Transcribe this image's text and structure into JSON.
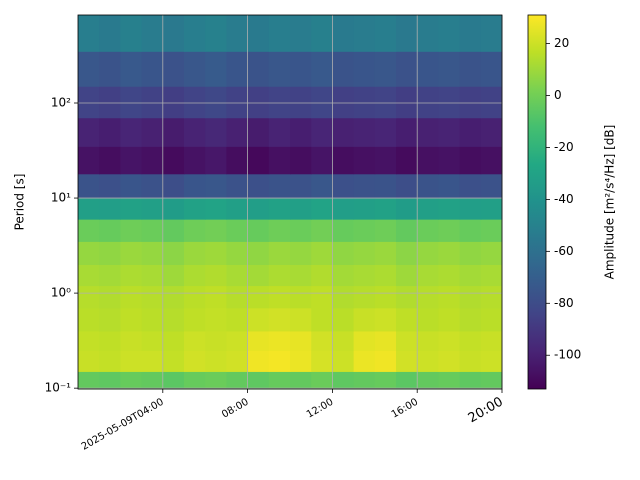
{
  "chart_data": {
    "type": "heatmap",
    "ylabel": "Period [s]",
    "colorbar_label": "Amplitude [m²/s⁴/Hz] [dB]",
    "colormap": "viridis",
    "clim": [
      -113,
      31
    ],
    "cticks": [
      20,
      0,
      -20,
      -40,
      -60,
      -80,
      -100
    ],
    "log_y": true,
    "grid": true,
    "xlim": [
      "2025-05-09T00:00",
      "2025-05-09T20:00"
    ],
    "xticks": [
      {
        "value": "2025-05-09T04:00",
        "label": "2025-05-09T04:00"
      },
      {
        "value": "2025-05-09T08:00",
        "label": "08:00"
      },
      {
        "value": "2025-05-09T12:00",
        "label": "12:00"
      },
      {
        "value": "2025-05-09T16:00",
        "label": "16:00"
      },
      {
        "value": "2025-05-09T20:00",
        "label": "20:00"
      }
    ],
    "ylim": [
      0.098,
      843
    ],
    "yticks": [
      {
        "value": 0.1,
        "label": "10⁻¹"
      },
      {
        "value": 1,
        "label": "10⁰"
      },
      {
        "value": 10,
        "label": "10¹"
      },
      {
        "value": 100,
        "label": "10²"
      }
    ],
    "x_bins": [
      "2025-05-09T00:00",
      "2025-05-09T01:00",
      "2025-05-09T02:00",
      "2025-05-09T03:00",
      "2025-05-09T04:00",
      "2025-05-09T05:00",
      "2025-05-09T06:00",
      "2025-05-09T07:00",
      "2025-05-09T08:00",
      "2025-05-09T09:00",
      "2025-05-09T10:00",
      "2025-05-09T11:00",
      "2025-05-09T12:00",
      "2025-05-09T13:00",
      "2025-05-09T14:00",
      "2025-05-09T15:00",
      "2025-05-09T16:00",
      "2025-05-09T17:00",
      "2025-05-09T18:00",
      "2025-05-09T19:00",
      "2025-05-09T20:00"
    ],
    "y_bins": [
      0.098,
      0.15,
      0.25,
      0.4,
      0.7,
      1.2,
      2,
      3.5,
      6,
      10,
      18,
      35,
      70,
      150,
      350,
      843
    ],
    "values": [
      [
        -4,
        -5,
        -3,
        -4,
        -6,
        -3,
        -2,
        -4,
        -5,
        -3,
        -4,
        -2,
        -5,
        -4,
        -3,
        -6,
        -4,
        -3,
        -5,
        -4
      ],
      [
        19,
        18,
        20,
        20,
        18,
        21,
        20,
        21,
        28,
        29,
        27,
        22,
        20,
        27,
        28,
        21,
        20,
        21,
        19,
        20
      ],
      [
        18,
        17,
        19,
        18,
        17,
        20,
        19,
        20,
        26,
        27,
        26,
        21,
        19,
        25,
        26,
        20,
        19,
        20,
        18,
        19
      ],
      [
        16,
        15,
        17,
        16,
        15,
        17,
        18,
        17,
        20,
        21,
        20,
        17,
        16,
        19,
        20,
        17,
        16,
        17,
        15,
        16
      ],
      [
        15,
        14,
        16,
        15,
        14,
        16,
        17,
        15,
        16,
        17,
        16,
        17,
        14,
        15,
        16,
        14,
        15,
        16,
        14,
        15
      ],
      [
        12,
        11,
        13,
        12,
        10,
        13,
        14,
        12,
        11,
        13,
        12,
        14,
        11,
        12,
        13,
        10,
        12,
        13,
        11,
        12
      ],
      [
        8,
        7,
        9,
        8,
        6,
        9,
        10,
        8,
        7,
        9,
        8,
        10,
        7,
        8,
        9,
        6,
        8,
        9,
        7,
        8
      ],
      [
        -2,
        -3,
        -1,
        -2,
        -4,
        -1,
        0,
        -2,
        -3,
        -1,
        -2,
        0,
        -3,
        -2,
        -1,
        -4,
        -2,
        -1,
        -3,
        -2
      ],
      [
        -32,
        -33,
        -31,
        -32,
        -34,
        -31,
        -30,
        -32,
        -33,
        -31,
        -32,
        -30,
        -33,
        -32,
        -31,
        -34,
        -32,
        -31,
        -33,
        -32
      ],
      [
        -76,
        -78,
        -75,
        -77,
        -79,
        -75,
        -74,
        -77,
        -78,
        -76,
        -77,
        -74,
        -78,
        -77,
        -76,
        -79,
        -76,
        -75,
        -78,
        -77
      ],
      [
        -106,
        -108,
        -105,
        -107,
        -109,
        -106,
        -104,
        -108,
        -110,
        -107,
        -108,
        -105,
        -108,
        -107,
        -106,
        -109,
        -107,
        -106,
        -108,
        -107
      ],
      [
        -99,
        -101,
        -98,
        -100,
        -102,
        -99,
        -97,
        -100,
        -102,
        -99,
        -101,
        -98,
        -100,
        -99,
        -98,
        -101,
        -100,
        -99,
        -101,
        -100
      ],
      [
        -84,
        -86,
        -83,
        -85,
        -87,
        -84,
        -82,
        -85,
        -86,
        -84,
        -85,
        -83,
        -86,
        -85,
        -84,
        -87,
        -85,
        -84,
        -86,
        -85
      ],
      [
        -74,
        -76,
        -73,
        -75,
        -77,
        -74,
        -72,
        -75,
        -76,
        -74,
        -75,
        -73,
        -76,
        -75,
        -74,
        -77,
        -75,
        -74,
        -76,
        -75
      ],
      [
        -52,
        -54,
        -51,
        -53,
        -55,
        -52,
        -50,
        -53,
        -54,
        -52,
        -53,
        -51,
        -54,
        -53,
        -52,
        -55,
        -53,
        -52,
        -54,
        -53
      ]
    ]
  }
}
